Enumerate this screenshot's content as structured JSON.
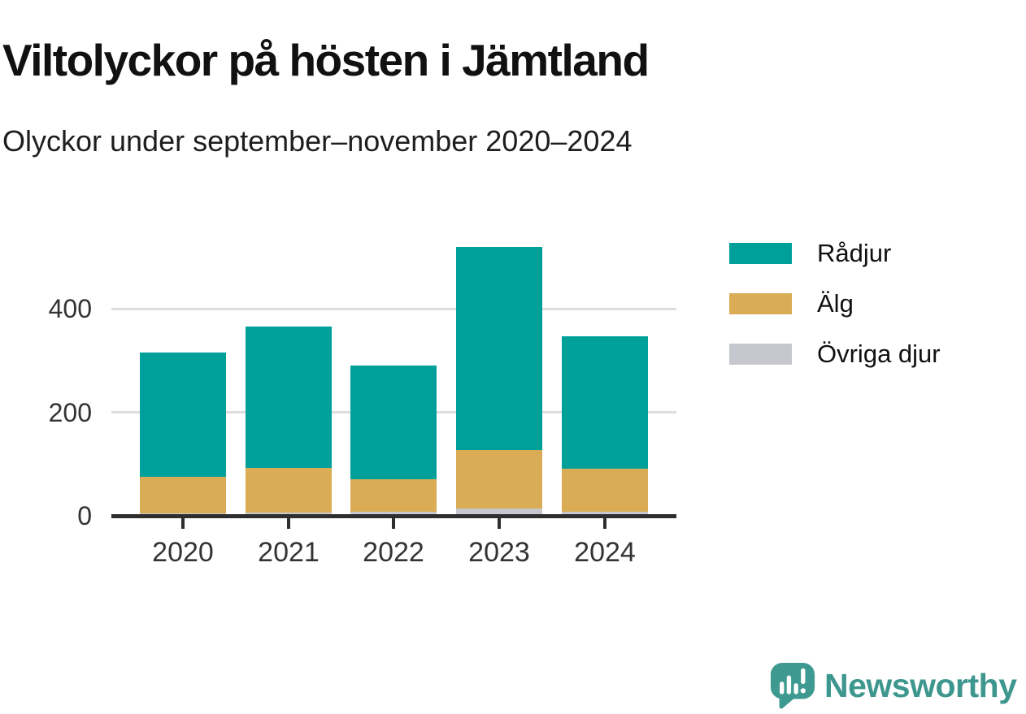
{
  "title": "Viltolyckor på hösten i Jämtland",
  "subtitle": "Olyckor under september–november 2020–2024",
  "branding": {
    "name": "Newsworthy",
    "logo_icon": "speech-bubble-bar-chart-exclamation",
    "color": "#3e978e"
  },
  "colors": {
    "radjur": "#00a09a",
    "alg": "#d9ac55",
    "ovriga_djur": "#c7c7cf",
    "axis": "#2e2e2e",
    "gridline": "#dddddd"
  },
  "chart_data": {
    "type": "bar",
    "stacked": true,
    "title": "Viltolyckor på hösten i Jämtland",
    "subtitle": "Olyckor under september–november 2020–2024",
    "categories": [
      "2020",
      "2021",
      "2022",
      "2023",
      "2024"
    ],
    "series": [
      {
        "name": "Rådjur",
        "color": "#00a09a",
        "values": [
          240,
          274,
          219,
          393,
          256
        ]
      },
      {
        "name": "Älg",
        "color": "#d9ac55",
        "values": [
          70,
          85,
          63,
          113,
          83
        ]
      },
      {
        "name": "Övriga djur",
        "color": "#c7c7cf",
        "values": [
          5,
          7,
          8,
          14,
          8
        ]
      }
    ],
    "totals": [
      315,
      366,
      290,
      520,
      347
    ],
    "xlabel": "",
    "ylabel": "",
    "yticks": [
      0,
      200,
      400
    ],
    "ylim": [
      0,
      560
    ],
    "grid": "horizontal",
    "legend_position": "right",
    "legend_entries": [
      "Rådjur",
      "Älg",
      "Övriga djur"
    ]
  }
}
